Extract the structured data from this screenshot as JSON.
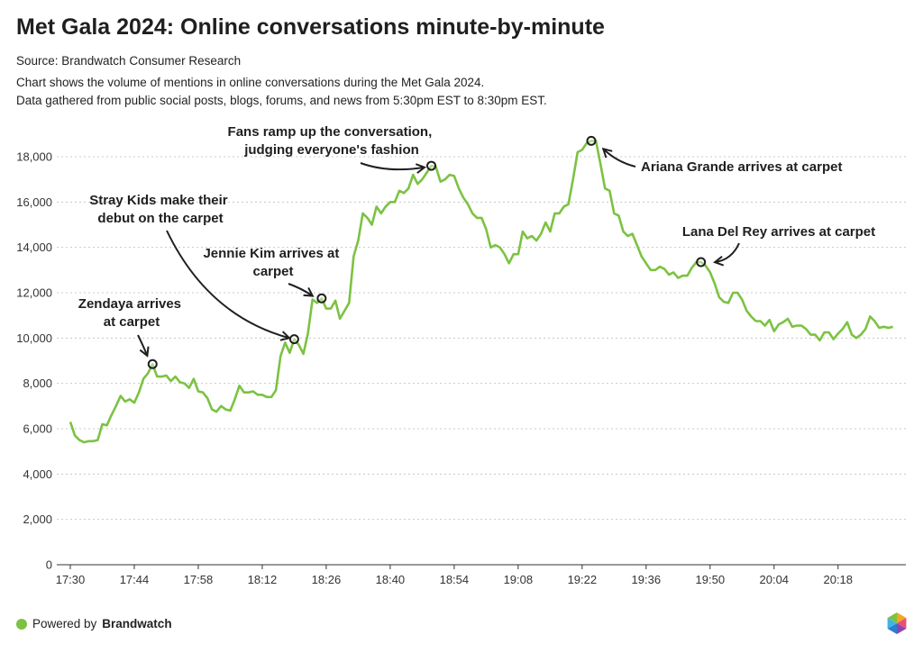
{
  "header": {
    "title": "Met Gala 2024: Online conversations minute-by-minute",
    "source": "Source: Brandwatch Consumer Research",
    "description_line1": "Chart shows the volume of mentions in online conversations during the Met Gala 2024.",
    "description_line2": "Data gathered from public social posts, blogs, forums, and news from 5:30pm EST to 8:30pm EST."
  },
  "footer": {
    "powered_by": "Powered by",
    "brand": "Brandwatch",
    "logo_icon": "brandwatch-hexagon-logo"
  },
  "colors": {
    "line": "#7cc242",
    "marker": "#1f1f1f",
    "grid": "#c8c8c8"
  },
  "chart_data": {
    "type": "line",
    "title": "Met Gala 2024: Online conversations minute-by-minute",
    "xlabel": "",
    "ylabel": "",
    "x_start": "17:30",
    "x_interval_minutes": 1,
    "xlim": [
      "17:30",
      "20:34"
    ],
    "ylim": [
      0,
      19500
    ],
    "grid": "horizontal dotted",
    "y_ticks": [
      "0",
      "2,000",
      "4,000",
      "6,000",
      "8,000",
      "10,000",
      "12,000",
      "14,000",
      "16,000",
      "18,000"
    ],
    "y_tick_values": [
      0,
      2000,
      4000,
      6000,
      8000,
      10000,
      12000,
      14000,
      16000,
      18000
    ],
    "x_ticks": [
      "17:30",
      "17:44",
      "17:58",
      "18:12",
      "18:26",
      "18:40",
      "18:54",
      "19:08",
      "19:22",
      "19:36",
      "19:50",
      "20:04",
      "20:18"
    ],
    "values": [
      6300,
      5700,
      5500,
      5400,
      5450,
      5450,
      5500,
      6200,
      6150,
      6600,
      7000,
      7450,
      7200,
      7300,
      7150,
      7600,
      8200,
      8450,
      8850,
      8300,
      8300,
      8350,
      8100,
      8300,
      8050,
      8000,
      7800,
      8200,
      7650,
      7600,
      7350,
      6850,
      6750,
      7000,
      6850,
      6800,
      7300,
      7900,
      7600,
      7600,
      7650,
      7500,
      7500,
      7400,
      7400,
      7700,
      9200,
      9800,
      9350,
      9950,
      9700,
      9300,
      10200,
      11700,
      11550,
      11750,
      11300,
      11300,
      11650,
      10850,
      11200,
      11550,
      13600,
      14300,
      15500,
      15300,
      15000,
      15800,
      15500,
      15800,
      16000,
      16000,
      16500,
      16400,
      16600,
      17200,
      16800,
      17000,
      17300,
      17600,
      17550,
      16900,
      17000,
      17200,
      17150,
      16600,
      16200,
      15900,
      15500,
      15300,
      15300,
      14800,
      14000,
      14100,
      14000,
      13700,
      13300,
      13700,
      13700,
      14700,
      14400,
      14500,
      14300,
      14600,
      15100,
      14700,
      15500,
      15500,
      15800,
      15900,
      17000,
      18200,
      18300,
      18600,
      18700,
      18700,
      17700,
      16600,
      16500,
      15500,
      15400,
      14700,
      14500,
      14600,
      14100,
      13600,
      13300,
      13000,
      13000,
      13150,
      13050,
      12800,
      12900,
      12650,
      12750,
      12750,
      13100,
      13350,
      13350,
      13200,
      12900,
      12400,
      11800,
      11600,
      11550,
      12000,
      12000,
      11700,
      11200,
      10950,
      10750,
      10750,
      10550,
      10800,
      10300,
      10600,
      10700,
      10850,
      10500,
      10550,
      10550,
      10400,
      10150,
      10150,
      9900,
      10250,
      10250,
      9950,
      10200,
      10400,
      10700,
      10150,
      10000,
      10150,
      10400,
      10950,
      10750,
      10450,
      10500,
      10450,
      10500
    ],
    "annotations": [
      {
        "minute_index": 18,
        "lines": [
          "Zendaya arrives",
          "at carpet"
        ]
      },
      {
        "minute_index": 49,
        "lines": [
          "Stray Kids make their",
          "debut on the carpet"
        ]
      },
      {
        "minute_index": 55,
        "lines": [
          "Jennie Kim arrives at",
          "carpet"
        ]
      },
      {
        "minute_index": 79,
        "lines": [
          "Fans ramp up the conversation,",
          "judging everyone's fashion"
        ]
      },
      {
        "minute_index": 114,
        "lines": [
          "Ariana Grande arrives at carpet"
        ]
      },
      {
        "minute_index": 138,
        "lines": [
          "Lana Del Rey arrives at carpet"
        ]
      }
    ]
  }
}
